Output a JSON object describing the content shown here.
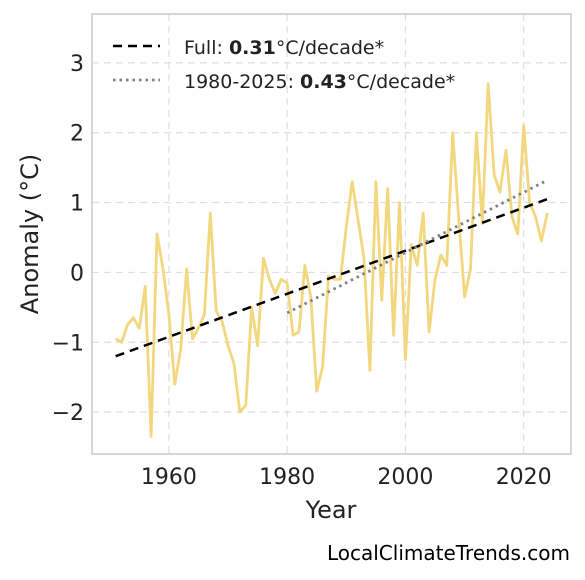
{
  "chart_data": {
    "type": "line",
    "xlabel": "Year",
    "ylabel": "Anomaly (°C)",
    "xlim": [
      1947,
      2028
    ],
    "ylim": [
      -2.6,
      3.7
    ],
    "xticks": [
      1960,
      1980,
      2000,
      2020
    ],
    "yticks": [
      -2,
      -1,
      0,
      1,
      2,
      3
    ],
    "ytick_labels": [
      "−2",
      "−1",
      "0",
      "1",
      "2",
      "3"
    ],
    "grid": true,
    "legend_position": "top-left",
    "colors": {
      "series": "#F2D77E",
      "full_trend": "#000000",
      "recent_trend": "#808080"
    },
    "series": [
      {
        "x": [
          1951,
          1952,
          1953,
          1954,
          1955,
          1956,
          1957,
          1958,
          1959,
          1960,
          1961,
          1962,
          1963,
          1964,
          1965,
          1966,
          1967,
          1968,
          1969,
          1970,
          1971,
          1972,
          1973,
          1974,
          1975,
          1976,
          1977,
          1978,
          1979,
          1980,
          1981,
          1982,
          1983,
          1984,
          1985,
          1986,
          1987,
          1988,
          1989,
          1990,
          1991,
          1992,
          1993,
          1994,
          1995,
          1996,
          1997,
          1998,
          1999,
          2000,
          2001,
          2002,
          2003,
          2004,
          2005,
          2006,
          2007,
          2008,
          2009,
          2010,
          2011,
          2012,
          2013,
          2014,
          2015,
          2016,
          2017,
          2018,
          2019,
          2020,
          2021,
          2022,
          2023,
          2024
        ],
        "y": [
          -0.95,
          -1.0,
          -0.75,
          -0.65,
          -0.8,
          -0.2,
          -2.35,
          0.55,
          0.05,
          -0.6,
          -1.6,
          -1.1,
          0.05,
          -0.95,
          -0.8,
          -0.6,
          0.85,
          -0.55,
          -0.7,
          -1.05,
          -1.3,
          -2.0,
          -1.9,
          -0.5,
          -1.05,
          0.2,
          -0.1,
          -0.3,
          -0.1,
          -0.15,
          -0.9,
          -0.85,
          0.1,
          -0.35,
          -1.7,
          -1.35,
          -0.05,
          -0.1,
          -0.1,
          0.65,
          1.3,
          0.75,
          0.2,
          -1.4,
          1.3,
          -0.4,
          1.2,
          -0.9,
          1.0,
          -1.25,
          0.4,
          0.1,
          0.85,
          -0.85,
          -0.1,
          0.25,
          0.1,
          2.0,
          0.8,
          -0.35,
          0.05,
          2.0,
          0.7,
          2.7,
          1.4,
          1.15,
          1.75,
          0.8,
          0.55,
          2.1,
          1.0,
          0.8,
          0.45,
          0.85
        ]
      }
    ],
    "trends": [
      {
        "x": [
          1951,
          2024
        ],
        "y": [
          -1.2,
          1.05
        ]
      },
      {
        "x": [
          1980,
          2024
        ],
        "y": [
          -0.58,
          1.32
        ]
      }
    ]
  },
  "legend": [
    {
      "prefix": "Full: ",
      "value": "0.31",
      "suffix": "°C/decade*"
    },
    {
      "prefix": "1980-2025: ",
      "value": "0.43",
      "suffix": "°C/decade*"
    }
  ],
  "footer": "LocalClimateTrends.com"
}
